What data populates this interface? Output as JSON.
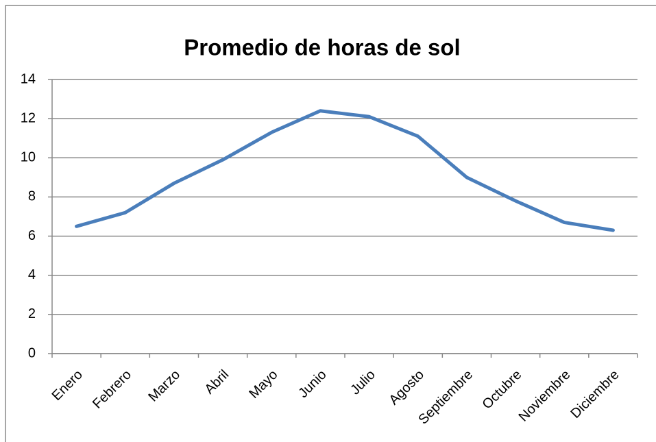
{
  "chart_data": {
    "type": "line",
    "title": "Promedio de horas de sol",
    "categories": [
      "Enero",
      "Febrero",
      "Marzo",
      "Abril",
      "Mayo",
      "Junio",
      "Julio",
      "Agosto",
      "Septiembre",
      "Octubre",
      "Noviembre",
      "Diciembre"
    ],
    "values": [
      6.5,
      7.2,
      8.7,
      9.9,
      11.3,
      12.4,
      12.1,
      11.1,
      9.0,
      7.8,
      6.7,
      6.3
    ],
    "color": "#4a7ebb",
    "ylim": [
      0,
      14
    ],
    "yticks": [
      0,
      2,
      4,
      6,
      8,
      10,
      12,
      14
    ],
    "grid": true
  }
}
